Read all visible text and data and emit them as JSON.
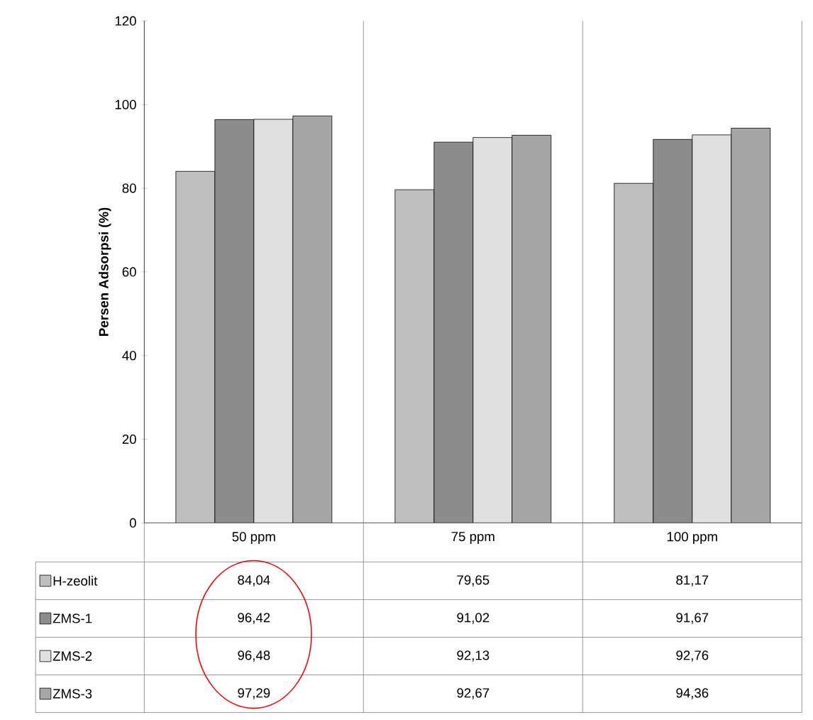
{
  "chart_data": {
    "type": "bar",
    "ylabel": "Persen Adsorpsi (%)",
    "categories": [
      "50 ppm",
      "75 ppm",
      "100 ppm"
    ],
    "series": [
      {
        "name": "H-zeolit",
        "color": "#bfbfbf",
        "values": [
          84.04,
          79.65,
          81.17
        ],
        "value_labels": [
          "84,04",
          "79,65",
          "81,17"
        ]
      },
      {
        "name": "ZMS-1",
        "color": "#8c8c8c",
        "values": [
          96.42,
          91.02,
          91.67
        ],
        "value_labels": [
          "96,42",
          "91,02",
          "91,67"
        ]
      },
      {
        "name": "ZMS-2",
        "color": "#e0e0e0",
        "values": [
          96.48,
          92.13,
          92.76
        ],
        "value_labels": [
          "96,48",
          "92,13",
          "92,76"
        ]
      },
      {
        "name": "ZMS-3",
        "color": "#a6a6a6",
        "values": [
          97.29,
          92.67,
          94.36
        ],
        "value_labels": [
          "97,29",
          "92,67",
          "94,36"
        ]
      }
    ],
    "ylim": [
      0,
      120
    ],
    "yticks": [
      0,
      20,
      40,
      60,
      80,
      100,
      120
    ],
    "grid": "x",
    "legend": "bottom left"
  }
}
